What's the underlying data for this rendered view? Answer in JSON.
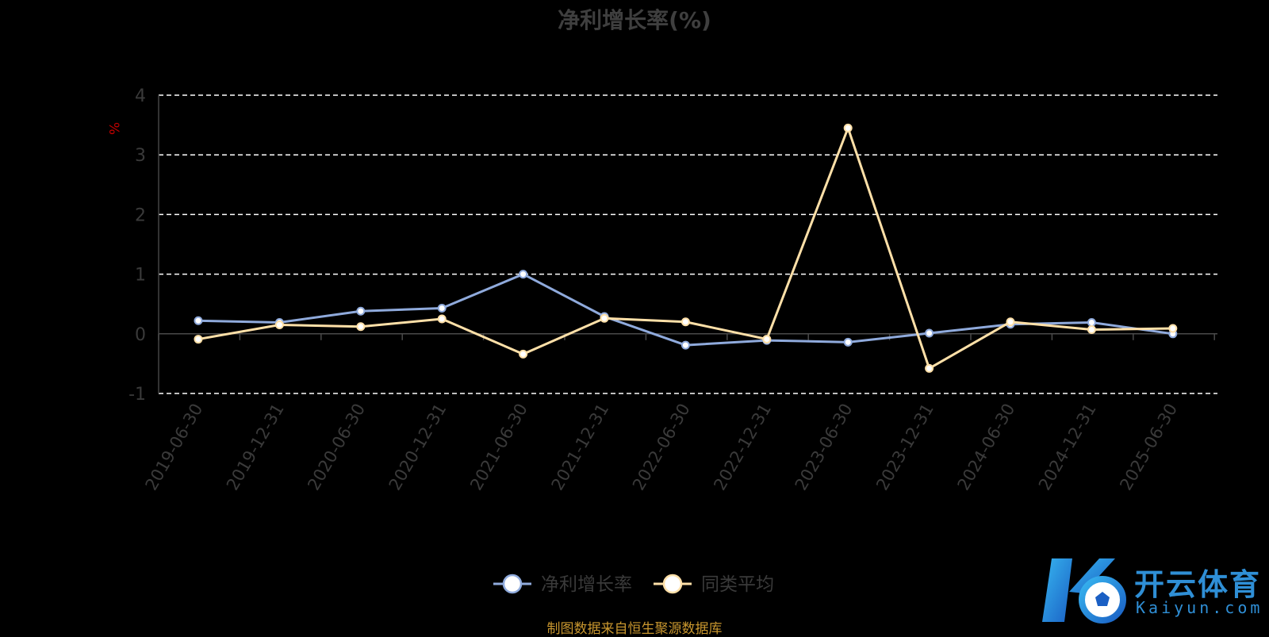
{
  "chart_data": {
    "type": "line",
    "title": "净利增长率(%)",
    "ylabel": "%",
    "xlabel": "",
    "ylim": [
      -1,
      4
    ],
    "yticks": [
      -1,
      0,
      1,
      2,
      3,
      4
    ],
    "grid": true,
    "legend_position": "bottom-center",
    "categories": [
      "2019-06-30",
      "2019-12-31",
      "2020-06-30",
      "2020-12-31",
      "2021-06-30",
      "2021-12-31",
      "2022-06-30",
      "2022-12-31",
      "2023-06-30",
      "2023-12-31",
      "2024-06-30",
      "2024-12-31",
      "2025-06-30"
    ],
    "series": [
      {
        "name": "净利增长率",
        "color": "#8faadc",
        "values": [
          0.22,
          0.19,
          0.38,
          0.43,
          1.0,
          0.29,
          -0.19,
          -0.11,
          -0.14,
          0.01,
          0.16,
          0.19,
          0.0
        ]
      },
      {
        "name": "同类平均",
        "color": "#ffe0a8",
        "values": [
          -0.09,
          0.15,
          0.12,
          0.25,
          -0.34,
          0.26,
          0.2,
          -0.09,
          3.45,
          -0.58,
          0.2,
          0.07,
          0.09
        ]
      }
    ]
  },
  "source_note": "制图数据来自恒生聚源数据库",
  "logo": {
    "cn": "开云体育",
    "en": "Kaiyun.com"
  }
}
